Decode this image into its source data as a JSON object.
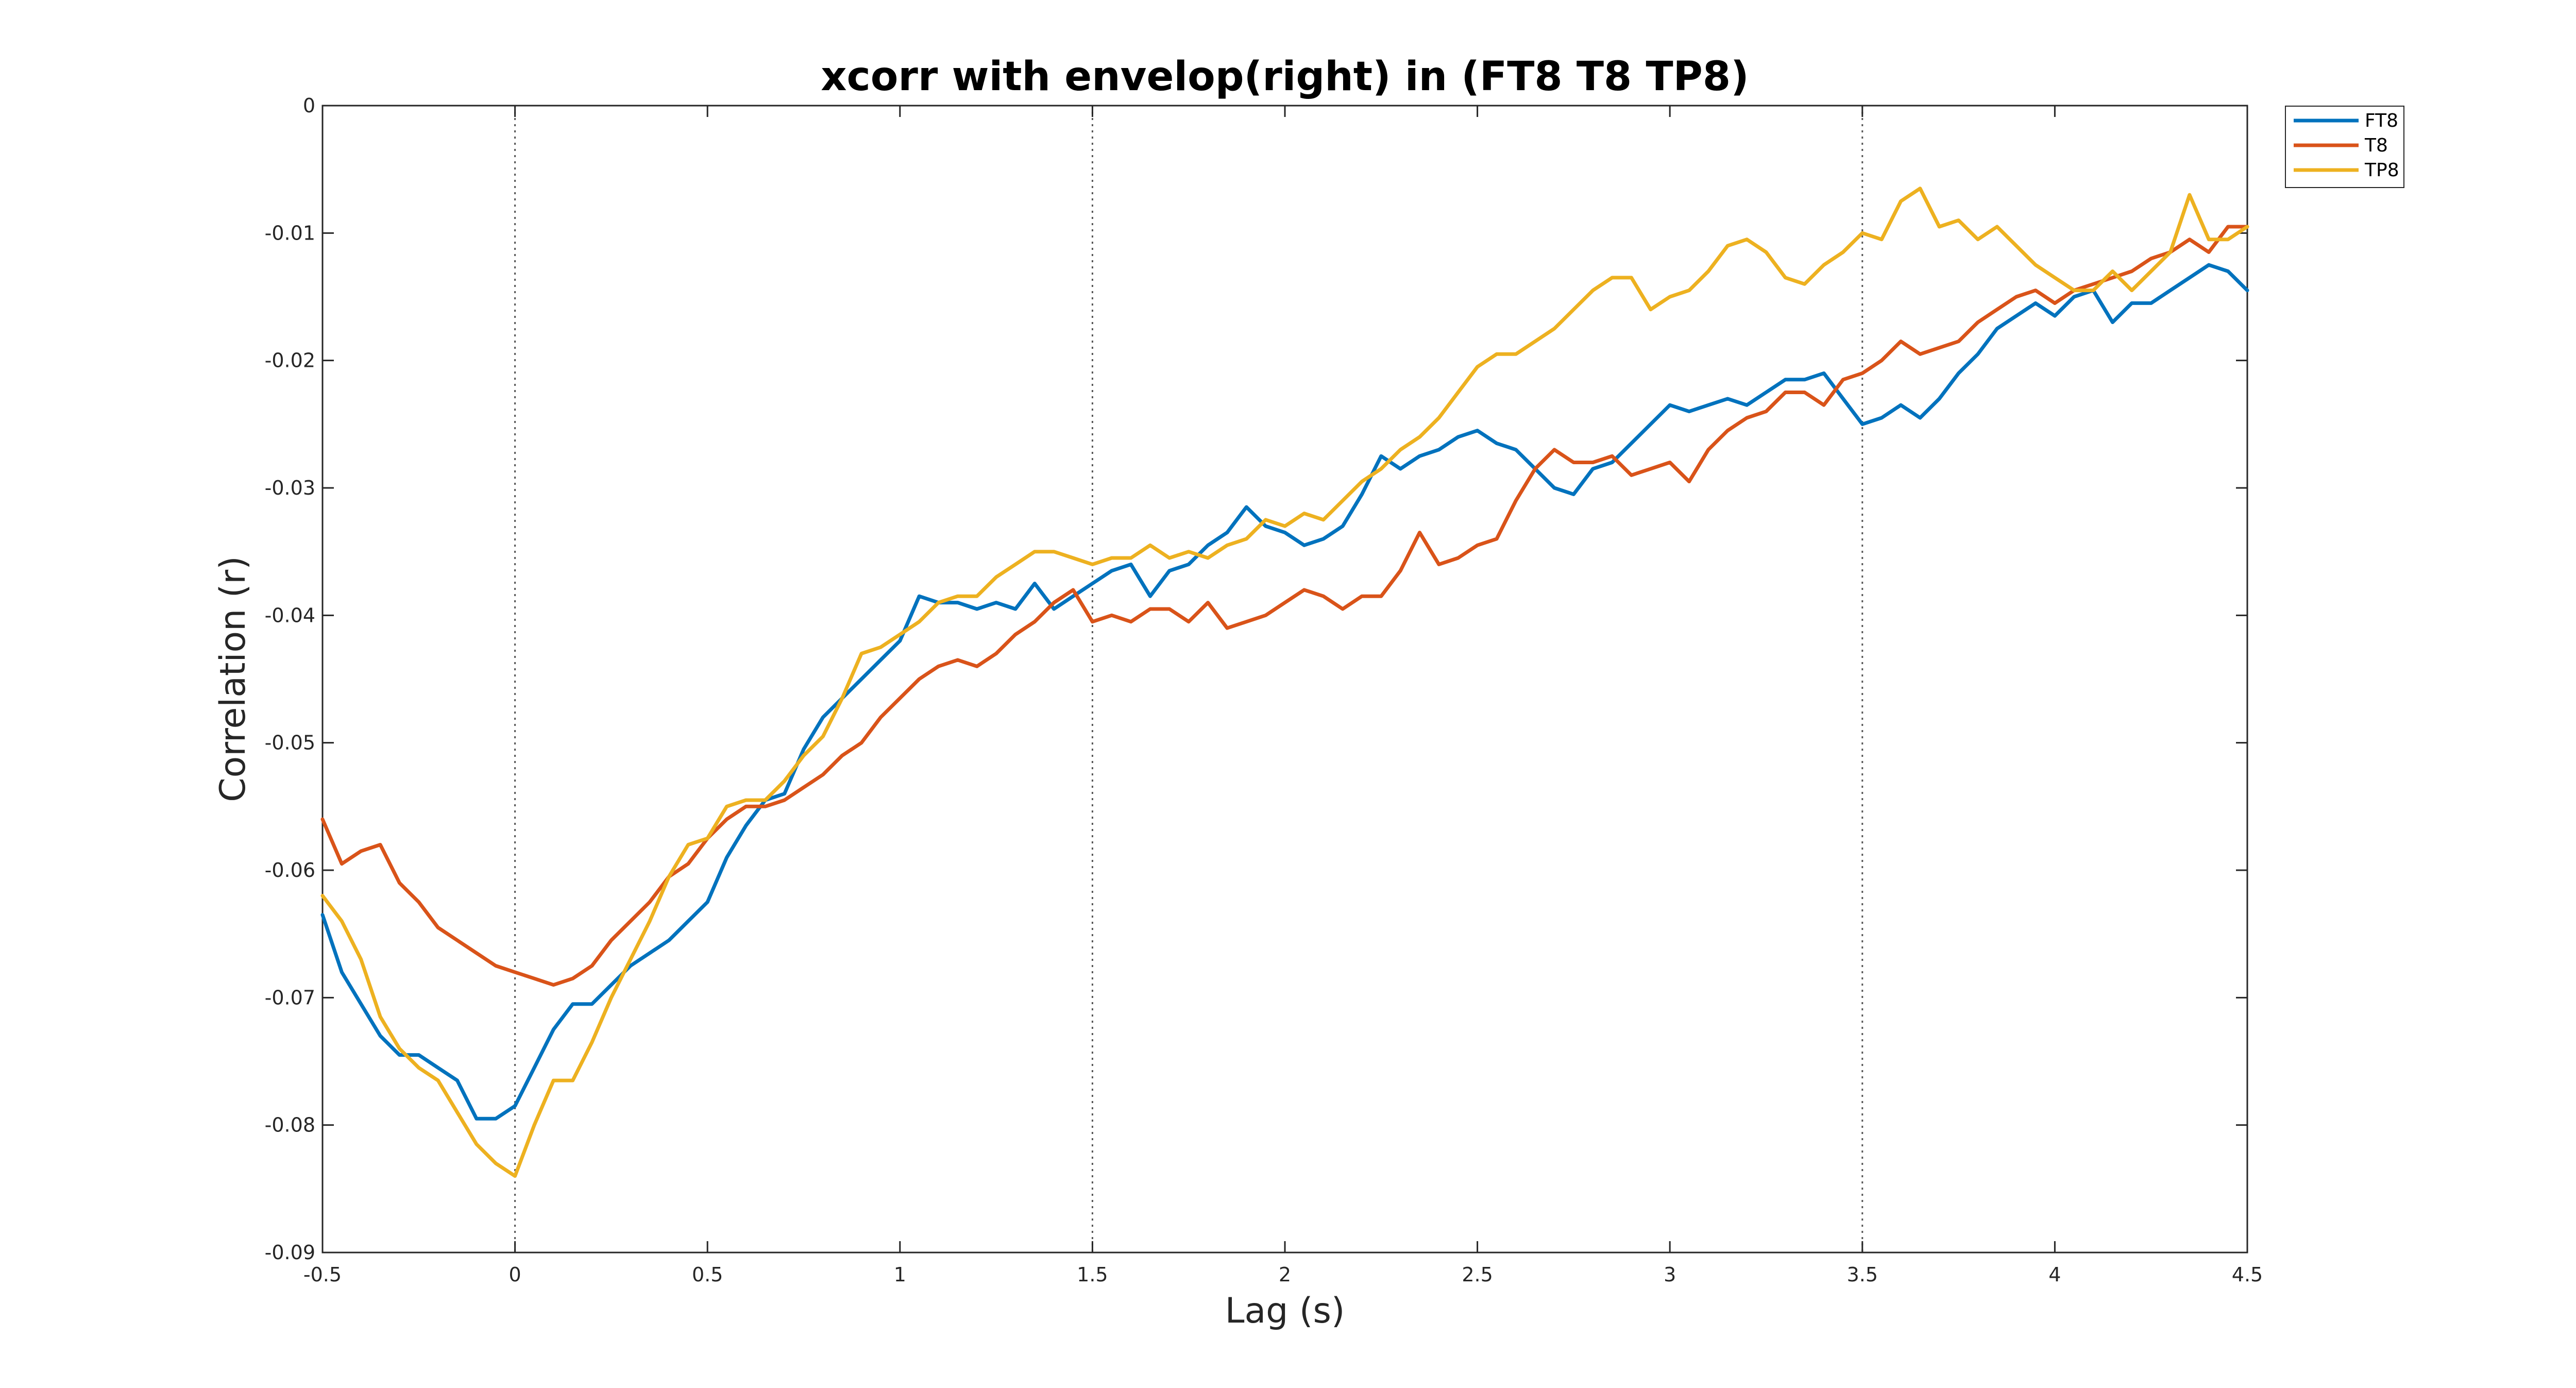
{
  "chart_data": {
    "type": "line",
    "title": "xcorr with envelop(right) in (FT8 T8 TP8)",
    "xlabel": "Lag (s)",
    "ylabel": "Correlation (r)",
    "xlim": [
      -0.5,
      4.5
    ],
    "ylim": [
      -0.09,
      0
    ],
    "xticks": [
      -0.5,
      0,
      0.5,
      1,
      1.5,
      2,
      2.5,
      3,
      3.5,
      4,
      4.5
    ],
    "xtick_labels": [
      "-0.5",
      "0",
      "0.5",
      "1",
      "1.5",
      "2",
      "2.5",
      "3",
      "3.5",
      "4",
      "4.5"
    ],
    "yticks": [
      -0.09,
      -0.08,
      -0.07,
      -0.06,
      -0.05,
      -0.04,
      -0.03,
      -0.02,
      -0.01,
      0
    ],
    "ytick_labels": [
      "-0.09",
      "-0.08",
      "-0.07",
      "-0.06",
      "-0.05",
      "-0.04",
      "-0.03",
      "-0.02",
      "-0.01",
      "0"
    ],
    "vlines": [
      0,
      1.5,
      3.5
    ],
    "grid": false,
    "legend_position": "outside-top-right",
    "series": [
      {
        "name": "FT8",
        "color": "#0072BD",
        "x": [
          -0.5,
          -0.45,
          -0.4,
          -0.35,
          -0.3,
          -0.25,
          -0.2,
          -0.15,
          -0.1,
          -0.05,
          0,
          0.05,
          0.1,
          0.15,
          0.2,
          0.25,
          0.3,
          0.35,
          0.4,
          0.45,
          0.5,
          0.55,
          0.6,
          0.65,
          0.7,
          0.75,
          0.8,
          0.85,
          0.9,
          0.95,
          1,
          1.05,
          1.1,
          1.15,
          1.2,
          1.25,
          1.3,
          1.35,
          1.4,
          1.45,
          1.5,
          1.55,
          1.6,
          1.65,
          1.7,
          1.75,
          1.8,
          1.85,
          1.9,
          1.95,
          2,
          2.05,
          2.1,
          2.15,
          2.2,
          2.25,
          2.3,
          2.35,
          2.4,
          2.45,
          2.5,
          2.55,
          2.6,
          2.65,
          2.7,
          2.75,
          2.8,
          2.85,
          2.9,
          2.95,
          3,
          3.05,
          3.1,
          3.15,
          3.2,
          3.25,
          3.3,
          3.35,
          3.4,
          3.45,
          3.5,
          3.55,
          3.6,
          3.65,
          3.7,
          3.75,
          3.8,
          3.85,
          3.9,
          3.95,
          4,
          4.05,
          4.1,
          4.15,
          4.2,
          4.25,
          4.3,
          4.35,
          4.4,
          4.45,
          4.5
        ],
        "y": [
          -0.0635,
          -0.068,
          -0.0705,
          -0.073,
          -0.0745,
          -0.0745,
          -0.0755,
          -0.0765,
          -0.0795,
          -0.0795,
          -0.0785,
          -0.0755,
          -0.0725,
          -0.0705,
          -0.0705,
          -0.069,
          -0.0675,
          -0.0665,
          -0.0655,
          -0.064,
          -0.0625,
          -0.059,
          -0.0565,
          -0.0545,
          -0.054,
          -0.0505,
          -0.048,
          -0.0465,
          -0.045,
          -0.0435,
          -0.042,
          -0.0385,
          -0.039,
          -0.039,
          -0.0395,
          -0.039,
          -0.0395,
          -0.0375,
          -0.0395,
          -0.0385,
          -0.0375,
          -0.0365,
          -0.036,
          -0.0385,
          -0.0365,
          -0.036,
          -0.0345,
          -0.0335,
          -0.0315,
          -0.033,
          -0.0335,
          -0.0345,
          -0.034,
          -0.033,
          -0.0305,
          -0.0275,
          -0.0285,
          -0.0275,
          -0.027,
          -0.026,
          -0.0255,
          -0.0265,
          -0.027,
          -0.0285,
          -0.03,
          -0.0305,
          -0.0285,
          -0.028,
          -0.0265,
          -0.025,
          -0.0235,
          -0.024,
          -0.0235,
          -0.023,
          -0.0235,
          -0.0225,
          -0.0215,
          -0.0215,
          -0.021,
          -0.023,
          -0.025,
          -0.0245,
          -0.0235,
          -0.0245,
          -0.023,
          -0.021,
          -0.0195,
          -0.0175,
          -0.0165,
          -0.0155,
          -0.0165,
          -0.015,
          -0.0145,
          -0.017,
          -0.0155,
          -0.0155,
          -0.0145,
          -0.0135,
          -0.0125,
          -0.013,
          -0.0145
        ]
      },
      {
        "name": "T8",
        "color": "#D95319",
        "x": [
          -0.5,
          -0.45,
          -0.4,
          -0.35,
          -0.3,
          -0.25,
          -0.2,
          -0.15,
          -0.1,
          -0.05,
          0,
          0.05,
          0.1,
          0.15,
          0.2,
          0.25,
          0.3,
          0.35,
          0.4,
          0.45,
          0.5,
          0.55,
          0.6,
          0.65,
          0.7,
          0.75,
          0.8,
          0.85,
          0.9,
          0.95,
          1,
          1.05,
          1.1,
          1.15,
          1.2,
          1.25,
          1.3,
          1.35,
          1.4,
          1.45,
          1.5,
          1.55,
          1.6,
          1.65,
          1.7,
          1.75,
          1.8,
          1.85,
          1.9,
          1.95,
          2,
          2.05,
          2.1,
          2.15,
          2.2,
          2.25,
          2.3,
          2.35,
          2.4,
          2.45,
          2.5,
          2.55,
          2.6,
          2.65,
          2.7,
          2.75,
          2.8,
          2.85,
          2.9,
          2.95,
          3,
          3.05,
          3.1,
          3.15,
          3.2,
          3.25,
          3.3,
          3.35,
          3.4,
          3.45,
          3.5,
          3.55,
          3.6,
          3.65,
          3.7,
          3.75,
          3.8,
          3.85,
          3.9,
          3.95,
          4,
          4.05,
          4.1,
          4.15,
          4.2,
          4.25,
          4.3,
          4.35,
          4.4,
          4.45,
          4.5
        ],
        "y": [
          -0.056,
          -0.0595,
          -0.0585,
          -0.058,
          -0.061,
          -0.0625,
          -0.0645,
          -0.0655,
          -0.0665,
          -0.0675,
          -0.068,
          -0.0685,
          -0.069,
          -0.0685,
          -0.0675,
          -0.0655,
          -0.064,
          -0.0625,
          -0.0605,
          -0.0595,
          -0.0575,
          -0.056,
          -0.055,
          -0.055,
          -0.0545,
          -0.0535,
          -0.0525,
          -0.051,
          -0.05,
          -0.048,
          -0.0465,
          -0.045,
          -0.044,
          -0.0435,
          -0.044,
          -0.043,
          -0.0415,
          -0.0405,
          -0.039,
          -0.038,
          -0.0405,
          -0.04,
          -0.0405,
          -0.0395,
          -0.0395,
          -0.0405,
          -0.039,
          -0.041,
          -0.0405,
          -0.04,
          -0.039,
          -0.038,
          -0.0385,
          -0.0395,
          -0.0385,
          -0.0385,
          -0.0365,
          -0.0335,
          -0.036,
          -0.0355,
          -0.0345,
          -0.034,
          -0.031,
          -0.0285,
          -0.027,
          -0.028,
          -0.028,
          -0.0275,
          -0.029,
          -0.0285,
          -0.028,
          -0.0295,
          -0.027,
          -0.0255,
          -0.0245,
          -0.024,
          -0.0225,
          -0.0225,
          -0.0235,
          -0.0215,
          -0.021,
          -0.02,
          -0.0185,
          -0.0195,
          -0.019,
          -0.0185,
          -0.017,
          -0.016,
          -0.015,
          -0.0145,
          -0.0155,
          -0.0145,
          -0.014,
          -0.0135,
          -0.013,
          -0.012,
          -0.0115,
          -0.0105,
          -0.0115,
          -0.0095,
          -0.0095
        ]
      },
      {
        "name": "TP8",
        "color": "#EDB120",
        "x": [
          -0.5,
          -0.45,
          -0.4,
          -0.35,
          -0.3,
          -0.25,
          -0.2,
          -0.15,
          -0.1,
          -0.05,
          0,
          0.05,
          0.1,
          0.15,
          0.2,
          0.25,
          0.3,
          0.35,
          0.4,
          0.45,
          0.5,
          0.55,
          0.6,
          0.65,
          0.7,
          0.75,
          0.8,
          0.85,
          0.9,
          0.95,
          1,
          1.05,
          1.1,
          1.15,
          1.2,
          1.25,
          1.3,
          1.35,
          1.4,
          1.45,
          1.5,
          1.55,
          1.6,
          1.65,
          1.7,
          1.75,
          1.8,
          1.85,
          1.9,
          1.95,
          2,
          2.05,
          2.1,
          2.15,
          2.2,
          2.25,
          2.3,
          2.35,
          2.4,
          2.45,
          2.5,
          2.55,
          2.6,
          2.65,
          2.7,
          2.75,
          2.8,
          2.85,
          2.9,
          2.95,
          3,
          3.05,
          3.1,
          3.15,
          3.2,
          3.25,
          3.3,
          3.35,
          3.4,
          3.45,
          3.5,
          3.55,
          3.6,
          3.65,
          3.7,
          3.75,
          3.8,
          3.85,
          3.9,
          3.95,
          4,
          4.05,
          4.1,
          4.15,
          4.2,
          4.25,
          4.3,
          4.35,
          4.4,
          4.45,
          4.5
        ],
        "y": [
          -0.062,
          -0.064,
          -0.067,
          -0.0715,
          -0.074,
          -0.0755,
          -0.0765,
          -0.079,
          -0.0815,
          -0.083,
          -0.084,
          -0.08,
          -0.0765,
          -0.0765,
          -0.0735,
          -0.07,
          -0.067,
          -0.064,
          -0.0605,
          -0.058,
          -0.0575,
          -0.055,
          -0.0545,
          -0.0545,
          -0.053,
          -0.051,
          -0.0495,
          -0.0465,
          -0.043,
          -0.0425,
          -0.0415,
          -0.0405,
          -0.039,
          -0.0385,
          -0.0385,
          -0.037,
          -0.036,
          -0.035,
          -0.035,
          -0.0355,
          -0.036,
          -0.0355,
          -0.0355,
          -0.0345,
          -0.0355,
          -0.035,
          -0.0355,
          -0.0345,
          -0.034,
          -0.0325,
          -0.033,
          -0.032,
          -0.0325,
          -0.031,
          -0.0295,
          -0.0285,
          -0.027,
          -0.026,
          -0.0245,
          -0.0225,
          -0.0205,
          -0.0195,
          -0.0195,
          -0.0185,
          -0.0175,
          -0.016,
          -0.0145,
          -0.0135,
          -0.0135,
          -0.016,
          -0.015,
          -0.0145,
          -0.013,
          -0.011,
          -0.0105,
          -0.0115,
          -0.0135,
          -0.014,
          -0.0125,
          -0.0115,
          -0.01,
          -0.0105,
          -0.0075,
          -0.0065,
          -0.0095,
          -0.009,
          -0.0105,
          -0.0095,
          -0.011,
          -0.0125,
          -0.0135,
          -0.0145,
          -0.0145,
          -0.013,
          -0.0145,
          -0.013,
          -0.0115,
          -0.007,
          -0.0105,
          -0.0105,
          -0.0095
        ]
      }
    ]
  }
}
